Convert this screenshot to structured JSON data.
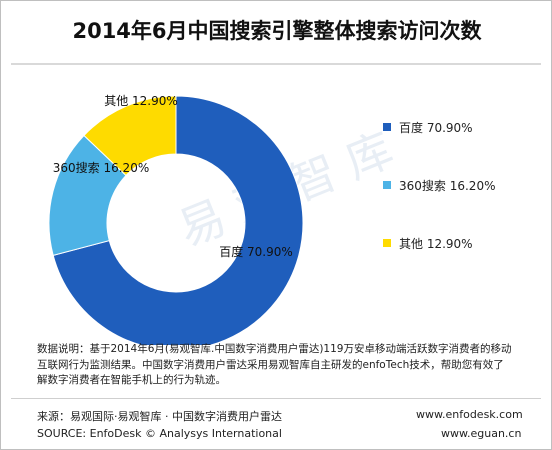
{
  "chart_data": {
    "type": "pie",
    "title": "2014年6月中国搜索引擎整体搜索访问次数",
    "donut": true,
    "slices": [
      {
        "name": "百度",
        "value": 70.9,
        "label": "百度  70.90%",
        "color": "#1f5ebc"
      },
      {
        "name": "360搜索",
        "value": 16.2,
        "label": "360搜索  16.20%",
        "color": "#4db3e6"
      },
      {
        "name": "其他",
        "value": 12.9,
        "label": "其他  12.90%",
        "color": "#fedb00"
      }
    ],
    "legend_position": "right"
  },
  "watermark": "易观智库",
  "note": {
    "line1": "数据说明：基于2014年6月(易观智库.中国数字消费用户雷达)119万安卓移动端活跃数字消费者的移动",
    "line2": "互联网行为监测结果。中国数字消费用户雷达采用易观智库自主研发的enfoTech技术，帮助您有效了",
    "line3": "解数字消费者在智能手机上的行为轨迹。"
  },
  "footer": {
    "source_cn": "来源：易观国际·易观智库 · 中国数字消费用户雷达",
    "source_en": "SOURCE: EnfoDesk © Analysys International",
    "url1": "www.enfodesk.com",
    "url2": "www.eguan.cn"
  }
}
